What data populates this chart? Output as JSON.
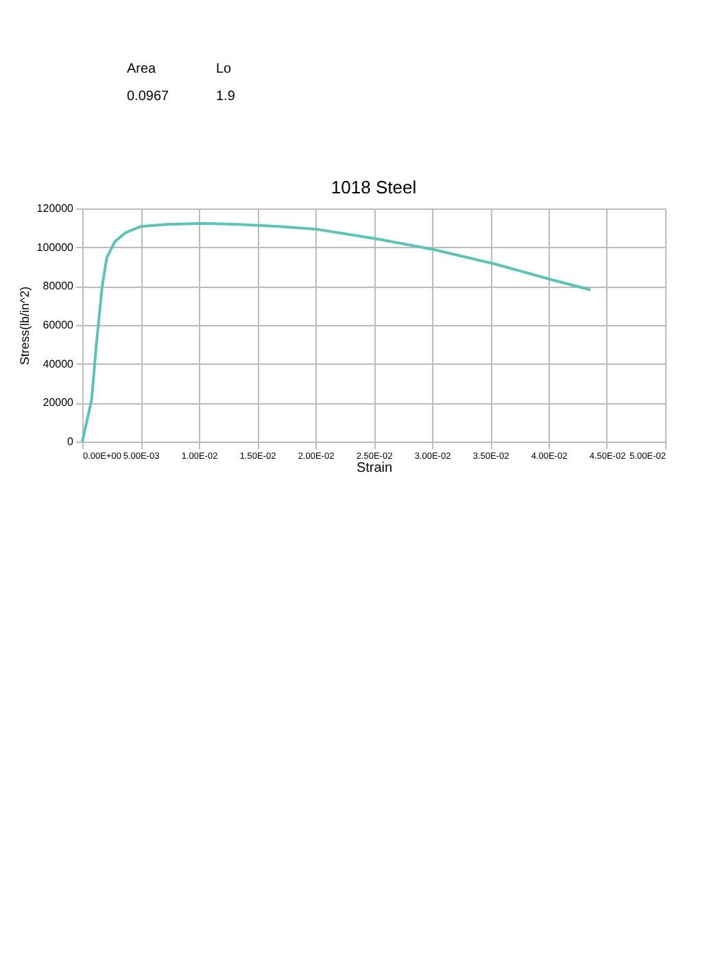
{
  "chart_data": {
    "type": "line",
    "title": "1018 Steel",
    "xlabel": "Strain",
    "ylabel": "Stress(lb/in^2)",
    "annotations": [
      "Area",
      "Lo",
      "0.0967",
      "1.9"
    ],
    "x": [
      0,
      0.0008,
      0.0012,
      0.0017,
      0.0021,
      0.0028,
      0.0037,
      0.005,
      0.0072,
      0.0103,
      0.0134,
      0.0169,
      0.0202,
      0.0253,
      0.0301,
      0.0354,
      0.0399,
      0.0436
    ],
    "series": [
      {
        "color": "#5cc3b5",
        "values": [
          0,
          21500,
          49500,
          79600,
          94600,
          103000,
          107500,
          110700,
          111800,
          112300,
          111800,
          110700,
          109200,
          104300,
          98900,
          91400,
          83900,
          78100
        ]
      }
    ],
    "xlim": [
      0,
      0.05
    ],
    "xticks": [
      {
        "value": 0,
        "label": "0.00E+00"
      },
      {
        "value": 0.005,
        "label": "5.00E-03"
      },
      {
        "value": 0.01,
        "label": "1.00E-02"
      },
      {
        "value": 0.015,
        "label": "1.50E-02"
      },
      {
        "value": 0.02,
        "label": "2.00E-02"
      },
      {
        "value": 0.025,
        "label": "2.50E-02"
      },
      {
        "value": 0.03,
        "label": "3.00E-02"
      },
      {
        "value": 0.035,
        "label": "3.50E-02"
      },
      {
        "value": 0.04,
        "label": "4.00E-02"
      },
      {
        "value": 0.045,
        "label": "4.50E-02"
      },
      {
        "value": 0.05,
        "label": "5.00E-02"
      }
    ],
    "ylim": [
      0,
      120000
    ],
    "yticks": [
      0,
      20000,
      40000,
      60000,
      80000,
      100000,
      120000
    ],
    "grid": true,
    "marker": "none",
    "line_style": "solid"
  }
}
